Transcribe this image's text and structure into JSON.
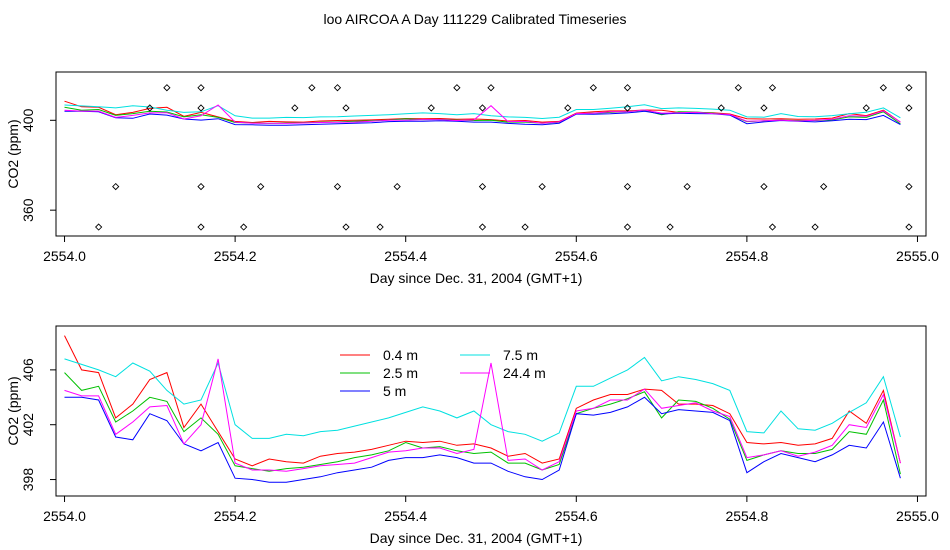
{
  "title": "loo AIRCOA A  Day 111229  Calibrated Timeseries",
  "chart_data": [
    {
      "type": "line",
      "xlabel": "Day since Dec. 31, 2004 (GMT+1)",
      "ylabel": "CO2 (ppm)",
      "xlim": [
        2553.99,
        2555.01
      ],
      "ylim": [
        348.5,
        421.5
      ],
      "x_ticks": [
        "2554.0",
        "2554.2",
        "2554.4",
        "2554.6",
        "2554.8",
        "2555.0"
      ],
      "y_ticks": [
        "360",
        "400"
      ],
      "legend": false,
      "x": [
        2554.0,
        2554.02,
        2554.04,
        2554.06,
        2554.08,
        2554.1,
        2554.12,
        2554.14,
        2554.16,
        2554.18,
        2554.2,
        2554.22,
        2554.24,
        2554.26,
        2554.28,
        2554.3,
        2554.32,
        2554.34,
        2554.36,
        2554.38,
        2554.4,
        2554.42,
        2554.44,
        2554.46,
        2554.48,
        2554.5,
        2554.52,
        2554.54,
        2554.56,
        2554.58,
        2554.6,
        2554.62,
        2554.64,
        2554.66,
        2554.68,
        2554.7,
        2554.72,
        2554.74,
        2554.76,
        2554.78,
        2554.8,
        2554.82,
        2554.84,
        2554.86,
        2554.88,
        2554.9,
        2554.92,
        2554.94,
        2554.96,
        2554.98
      ],
      "series": [
        {
          "color": "#ff0000",
          "values": [
            408.5,
            406,
            405.8,
            402.5,
            403.5,
            405.3,
            405.8,
            401.8,
            403.5,
            401.5,
            399.5,
            399,
            399.5,
            399.3,
            399.2,
            399.7,
            399.9,
            400,
            400.2,
            400.5,
            400.8,
            400.7,
            400.8,
            400.5,
            400.6,
            400.3,
            399.7,
            399.9,
            399.2,
            399.5,
            403.2,
            403.8,
            404.2,
            404.2,
            404.6,
            404.5,
            403.5,
            403.5,
            403.4,
            402.8,
            400.7,
            400.6,
            400.7,
            400.5,
            400.6,
            401,
            403,
            402.1,
            404.5,
            399.2
          ]
        },
        {
          "color": "#00c000",
          "values": [
            405.8,
            404.5,
            404.8,
            402.2,
            403,
            404,
            403.7,
            401.5,
            402.5,
            401.3,
            399,
            398.8,
            398.6,
            398.8,
            398.9,
            399.1,
            399.3,
            399.6,
            399.8,
            400.1,
            400.7,
            400.3,
            400.4,
            400.1,
            399.9,
            400,
            399.2,
            399.2,
            398.7,
            399.1,
            402.8,
            403.2,
            403.5,
            403.9,
            404.4,
            402.5,
            403.8,
            403.7,
            403.2,
            402.4,
            399.4,
            399.8,
            400.1,
            399.9,
            399.9,
            400.2,
            401.5,
            401.3,
            403.8,
            398.4
          ]
        },
        {
          "color": "#0000ff",
          "values": [
            404,
            404,
            403.8,
            401.1,
            400.9,
            402.8,
            402.3,
            400.6,
            400.1,
            400.7,
            398.1,
            398,
            397.8,
            397.8,
            398,
            398.2,
            398.5,
            398.7,
            398.9,
            399.4,
            399.6,
            399.6,
            399.8,
            399.6,
            399.2,
            399.2,
            398.6,
            398.2,
            398,
            398.7,
            402.8,
            402.7,
            402.9,
            403.3,
            404,
            402.8,
            403.1,
            403,
            402.9,
            402.3,
            398.5,
            399.3,
            399.9,
            399.6,
            399.3,
            399.8,
            400.5,
            400.3,
            402.2,
            398.1
          ]
        },
        {
          "color": "#00e0e0",
          "values": [
            406.8,
            406.4,
            406,
            405.5,
            406.5,
            405.9,
            404.5,
            403.5,
            403.8,
            406.5,
            402,
            401,
            401,
            401.3,
            401.2,
            401.5,
            401.6,
            401.9,
            402.2,
            402.5,
            402.9,
            403.3,
            403,
            402.5,
            403,
            402,
            401.5,
            401.3,
            400.8,
            401.4,
            404.8,
            404.8,
            405.4,
            406,
            406.9,
            405.2,
            405.5,
            405.3,
            405,
            404.5,
            401.5,
            401.4,
            403,
            401.7,
            401.6,
            402.1,
            402.9,
            403.6,
            405.5,
            401.1
          ]
        },
        {
          "color": "#ff00ff",
          "values": [
            404.5,
            404.1,
            404.1,
            401.3,
            402.2,
            403.3,
            403.4,
            400.6,
            402,
            406.8,
            399.2,
            398.7,
            398.7,
            398.6,
            398.8,
            399,
            399.1,
            399.2,
            399.6,
            400,
            400.1,
            400.3,
            400.3,
            399.9,
            400.2,
            406.5,
            399.4,
            399.5,
            398.7,
            399.3,
            403,
            403.2,
            403.8,
            403.8,
            404.6,
            403.2,
            403.4,
            403.6,
            403,
            402.6,
            399.6,
            399.8,
            400.1,
            399.7,
            400,
            400.5,
            402,
            401.8,
            404.2,
            399.2
          ]
        }
      ]
    },
    {
      "type": "line",
      "xlabel": "Day since Dec. 31, 2004 (GMT+1)",
      "ylabel": "CO2 (ppm)",
      "xlim": [
        2553.99,
        2555.01
      ],
      "ylim": [
        396.8,
        409.2
      ],
      "x_ticks": [
        "2554.0",
        "2554.2",
        "2554.4",
        "2554.6",
        "2554.8",
        "2555.0"
      ],
      "y_ticks": [
        "398",
        "402",
        "406"
      ],
      "legend_position": "top-center",
      "x": [
        2554.0,
        2554.02,
        2554.04,
        2554.06,
        2554.08,
        2554.1,
        2554.12,
        2554.14,
        2554.16,
        2554.18,
        2554.2,
        2554.22,
        2554.24,
        2554.26,
        2554.28,
        2554.3,
        2554.32,
        2554.34,
        2554.36,
        2554.38,
        2554.4,
        2554.42,
        2554.44,
        2554.46,
        2554.48,
        2554.5,
        2554.52,
        2554.54,
        2554.56,
        2554.58,
        2554.6,
        2554.62,
        2554.64,
        2554.66,
        2554.68,
        2554.7,
        2554.72,
        2554.74,
        2554.76,
        2554.78,
        2554.8,
        2554.82,
        2554.84,
        2554.86,
        2554.88,
        2554.9,
        2554.92,
        2554.94,
        2554.96,
        2554.98
      ],
      "series": [
        {
          "name": "0.4 m",
          "color": "#ff0000",
          "values": [
            408.5,
            406,
            405.8,
            402.5,
            403.5,
            405.3,
            405.8,
            401.8,
            403.5,
            401.5,
            399.5,
            399,
            399.5,
            399.3,
            399.2,
            399.7,
            399.9,
            400,
            400.2,
            400.5,
            400.8,
            400.7,
            400.8,
            400.5,
            400.6,
            400.3,
            399.7,
            399.9,
            399.2,
            399.5,
            403.2,
            403.8,
            404.2,
            404.2,
            404.6,
            404.5,
            403.5,
            403.5,
            403.4,
            402.8,
            400.7,
            400.6,
            400.7,
            400.5,
            400.6,
            401,
            403,
            402.1,
            404.5,
            399.2
          ]
        },
        {
          "name": "2.5 m",
          "color": "#00c000",
          "values": [
            405.8,
            404.5,
            404.8,
            402.2,
            403,
            404,
            403.7,
            401.5,
            402.5,
            401.3,
            399,
            398.8,
            398.6,
            398.8,
            398.9,
            399.1,
            399.3,
            399.6,
            399.8,
            400.1,
            400.7,
            400.3,
            400.4,
            400.1,
            399.9,
            400,
            399.2,
            399.2,
            398.7,
            399.1,
            402.8,
            403.2,
            403.5,
            403.9,
            404.4,
            402.5,
            403.8,
            403.7,
            403.2,
            402.4,
            399.4,
            399.8,
            400.1,
            399.9,
            399.9,
            400.2,
            401.5,
            401.3,
            403.8,
            398.4
          ]
        },
        {
          "name": "5 m",
          "color": "#0000ff",
          "values": [
            404,
            404,
            403.8,
            401.1,
            400.9,
            402.8,
            402.3,
            400.6,
            400.1,
            400.7,
            398.1,
            398,
            397.8,
            397.8,
            398,
            398.2,
            398.5,
            398.7,
            398.9,
            399.4,
            399.6,
            399.6,
            399.8,
            399.6,
            399.2,
            399.2,
            398.6,
            398.2,
            398,
            398.7,
            402.8,
            402.7,
            402.9,
            403.3,
            404,
            402.8,
            403.1,
            403,
            402.9,
            402.3,
            398.5,
            399.3,
            399.9,
            399.6,
            399.3,
            399.8,
            400.5,
            400.3,
            402.2,
            398.1
          ]
        },
        {
          "name": "7.5 m",
          "color": "#00e0e0",
          "values": [
            406.8,
            406.4,
            406,
            405.5,
            406.5,
            405.9,
            404.5,
            403.5,
            403.8,
            406.5,
            402,
            401,
            401,
            401.3,
            401.2,
            401.5,
            401.6,
            401.9,
            402.2,
            402.5,
            402.9,
            403.3,
            403,
            402.5,
            403,
            402,
            401.5,
            401.3,
            400.8,
            401.4,
            404.8,
            404.8,
            405.4,
            406,
            406.9,
            405.2,
            405.5,
            405.3,
            405,
            404.5,
            401.5,
            401.4,
            403,
            401.7,
            401.6,
            402.1,
            402.9,
            403.6,
            405.5,
            401.1
          ]
        },
        {
          "name": "24.4 m",
          "color": "#ff00ff",
          "values": [
            404.5,
            404.1,
            404.1,
            401.3,
            402.2,
            403.3,
            403.4,
            400.6,
            402,
            406.8,
            399.2,
            398.7,
            398.7,
            398.6,
            398.8,
            399,
            399.1,
            399.2,
            399.6,
            400,
            400.1,
            400.3,
            400.3,
            399.9,
            400.2,
            406.5,
            399.4,
            399.5,
            398.7,
            399.3,
            403,
            403.2,
            403.8,
            403.8,
            404.6,
            403.2,
            403.4,
            403.6,
            403,
            402.6,
            399.6,
            399.8,
            400.1,
            399.7,
            400,
            400.5,
            402,
            401.8,
            404.2,
            399.2
          ]
        }
      ]
    }
  ],
  "markers": {
    "color": "#000000",
    "rows": [
      {
        "y": 414.5,
        "x": [
          2554.12,
          2554.16,
          2554.29,
          2554.32,
          2554.46,
          2554.5,
          2554.62,
          2554.66,
          2554.79,
          2554.83,
          2554.96,
          2554.99
        ]
      },
      {
        "y": 405.5,
        "x": [
          2554.1,
          2554.16,
          2554.27,
          2554.33,
          2554.43,
          2554.49,
          2554.59,
          2554.66,
          2554.77,
          2554.82,
          2554.94,
          2554.99
        ]
      },
      {
        "y": 370.5,
        "x": [
          2554.06,
          2554.16,
          2554.23,
          2554.32,
          2554.39,
          2554.49,
          2554.56,
          2554.66,
          2554.73,
          2554.82,
          2554.89,
          2554.99
        ]
      },
      {
        "y": 352.5,
        "x": [
          2554.04,
          2554.16,
          2554.21,
          2554.33,
          2554.37,
          2554.49,
          2554.54,
          2554.66,
          2554.71,
          2554.83,
          2554.88,
          2554.99
        ]
      }
    ]
  }
}
